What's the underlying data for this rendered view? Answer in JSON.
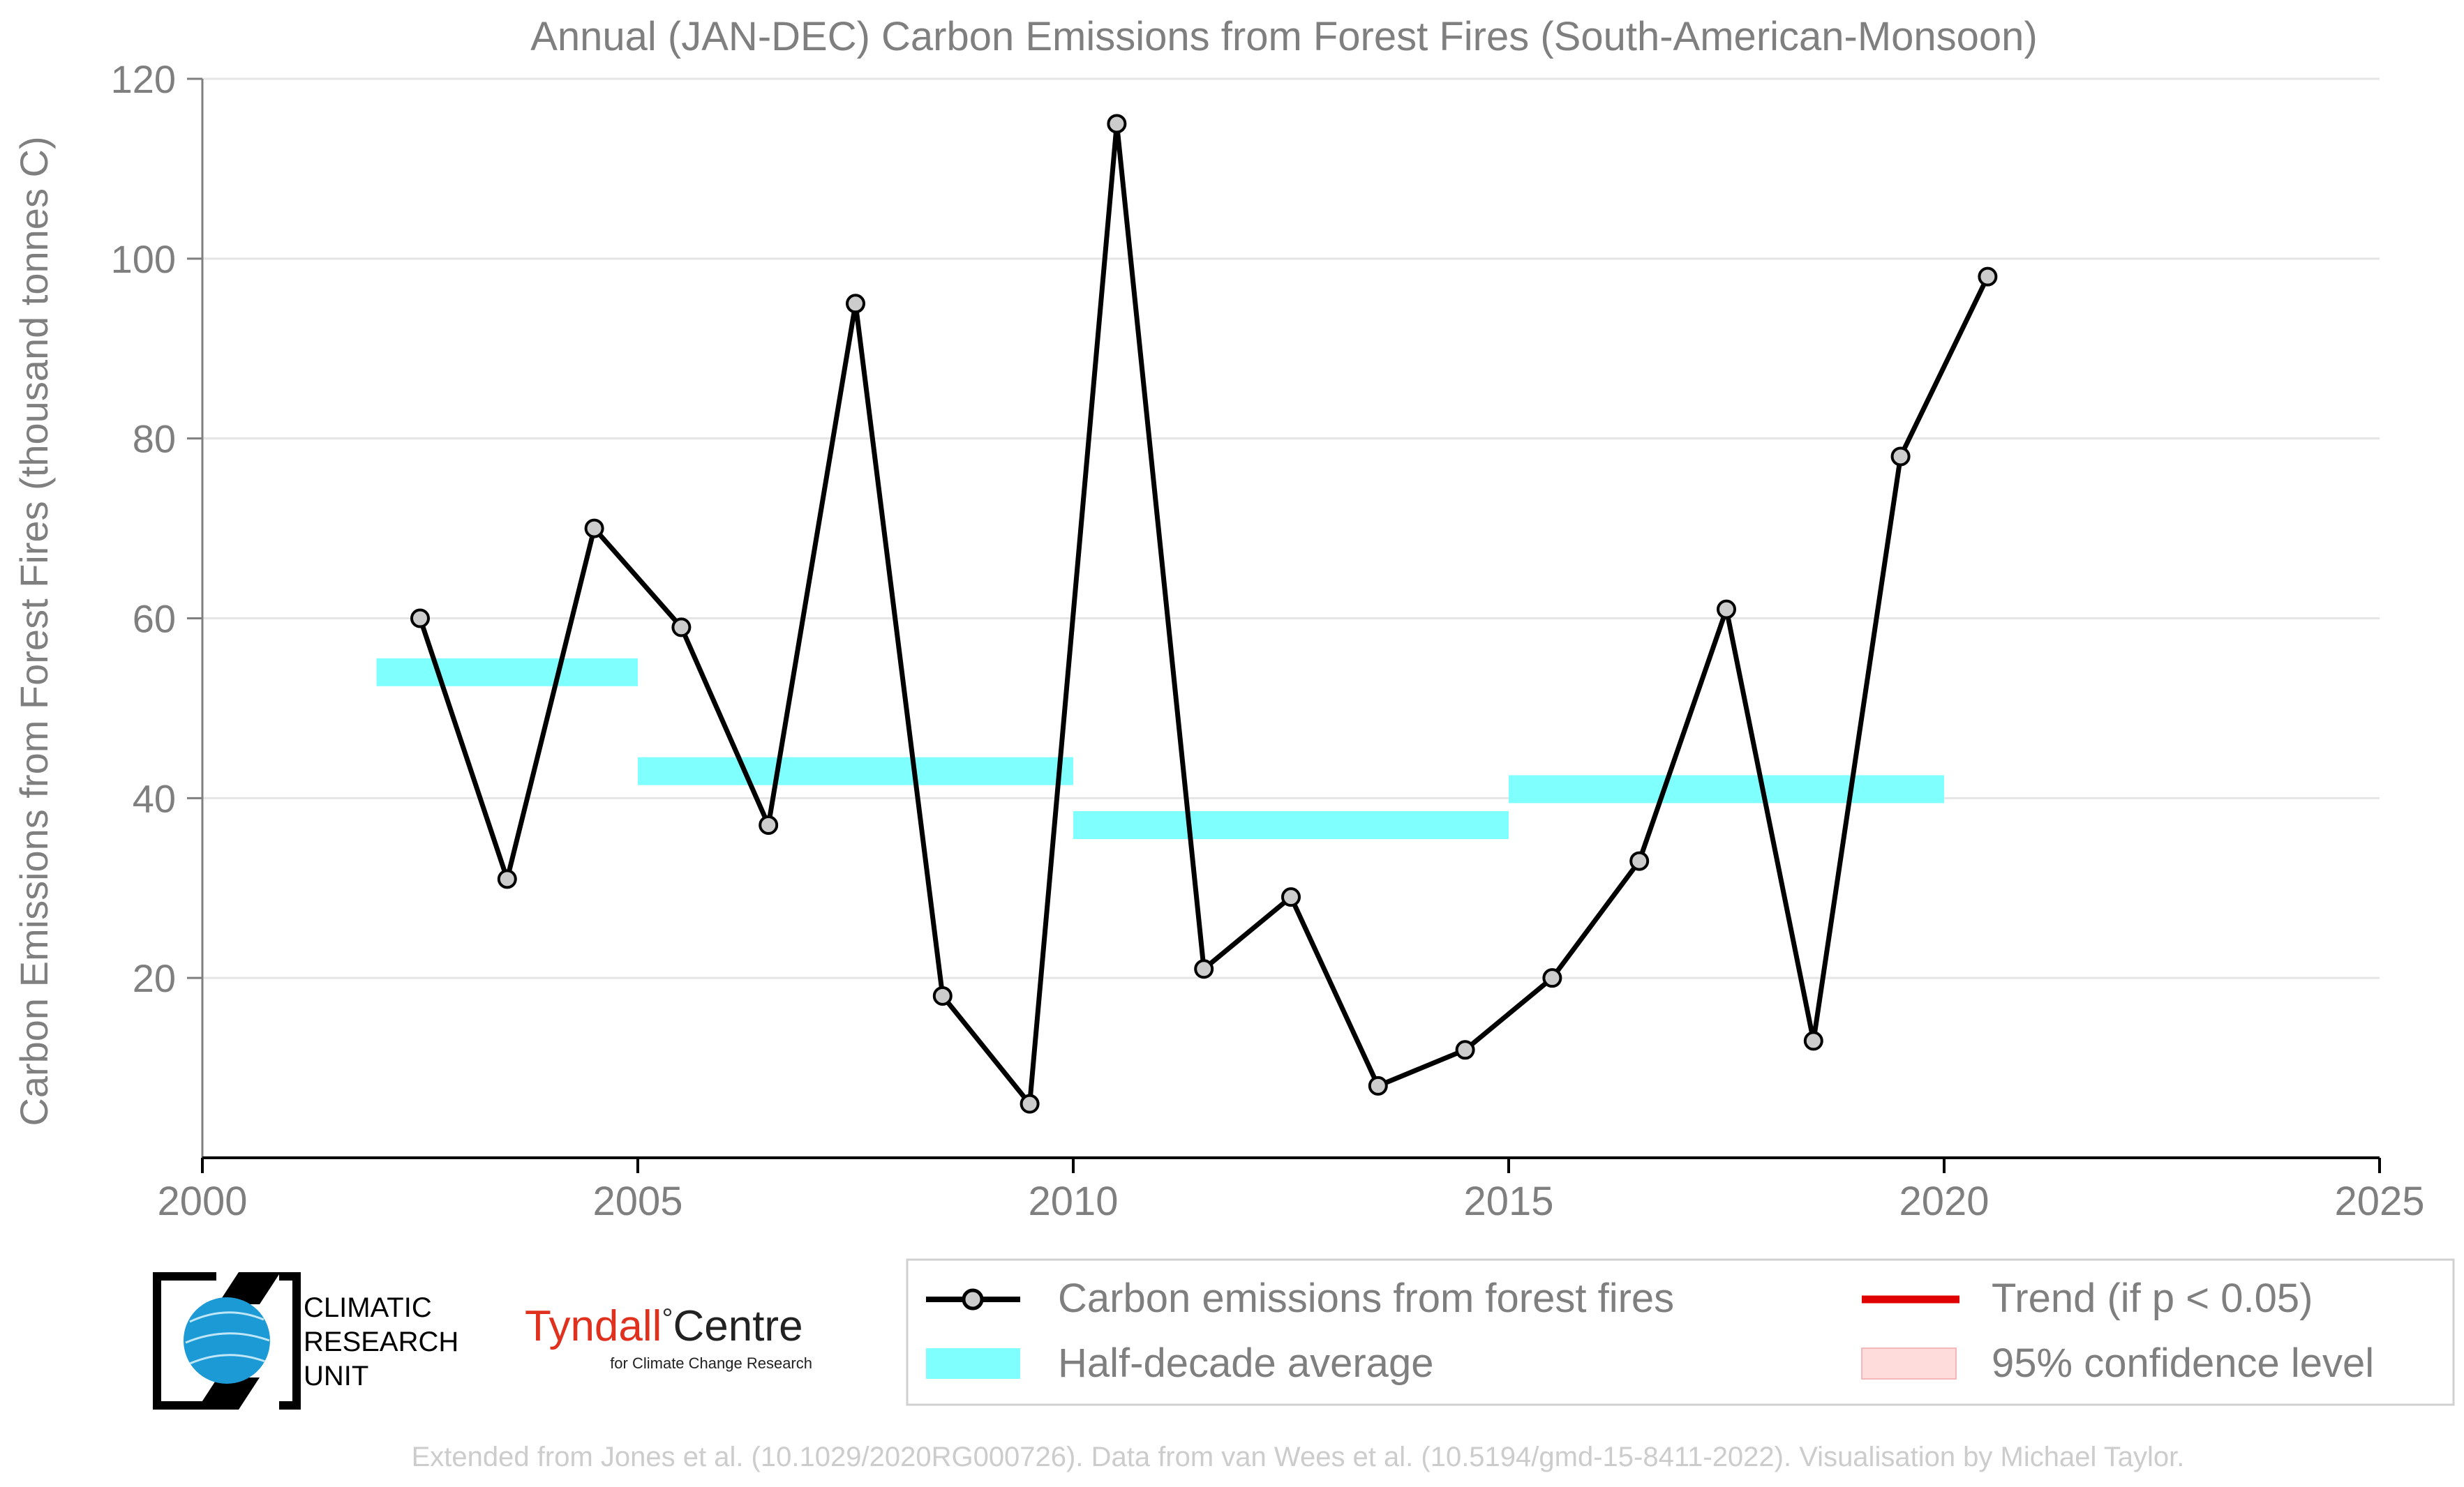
{
  "chart_data": {
    "type": "line",
    "title": "Annual (JAN-DEC) Carbon Emissions from Forest Fires (South-American-Monsoon)",
    "xlabel": "",
    "ylabel": "Carbon Emissions from Forest Fires (thousand tonnes C)",
    "xlim": [
      2000,
      2025
    ],
    "ylim": [
      0,
      120
    ],
    "x_ticks": [
      2000,
      2005,
      2010,
      2015,
      2020,
      2025
    ],
    "y_ticks": [
      20,
      40,
      60,
      80,
      100,
      120
    ],
    "grid": "horizontal",
    "series": [
      {
        "name": "Carbon emissions from forest fires",
        "color": "#000000",
        "marker_fill": "#cccccc",
        "x": [
          2002.5,
          2003.5,
          2004.5,
          2005.5,
          2006.5,
          2007.5,
          2008.5,
          2009.5,
          2010.5,
          2011.5,
          2012.5,
          2013.5,
          2014.5,
          2015.5,
          2016.5,
          2017.5,
          2018.5,
          2019.5,
          2020.5
        ],
        "values": [
          60,
          31,
          70,
          59,
          37,
          95,
          18,
          6,
          115,
          21,
          29,
          8,
          12,
          20,
          33,
          61,
          13,
          78,
          98
        ]
      }
    ],
    "half_decade_average": {
      "name": "Half-decade average",
      "color": "#80ffff",
      "segments": [
        {
          "x_start": 2002,
          "x_end": 2005,
          "value": 54
        },
        {
          "x_start": 2005,
          "x_end": 2010,
          "value": 43
        },
        {
          "x_start": 2010,
          "x_end": 2015,
          "value": 37
        },
        {
          "x_start": 2015,
          "x_end": 2020,
          "value": 41
        }
      ]
    },
    "legend": {
      "placement": "bottom-right",
      "entries": [
        {
          "label": "Carbon emissions from forest fires",
          "kind": "line-marker",
          "color": "#000000"
        },
        {
          "label": "Trend (if p < 0.05)",
          "kind": "line",
          "color": "#e00000"
        },
        {
          "label": "Half-decade average",
          "kind": "band",
          "color": "#80ffff"
        },
        {
          "label": "95% confidence level",
          "kind": "band",
          "color": "#ffdcdc"
        }
      ]
    }
  },
  "logos": {
    "cru_lines": [
      "CLIMATIC",
      "RESEARCH",
      "UNIT"
    ],
    "tyndall_red": "Tyndall",
    "tyndall_degree": "°",
    "tyndall_black": "Centre",
    "tyndall_sub": "for Climate Change Research"
  },
  "footer": "Extended from Jones et al. (10.1029/2020RG000726). Data from van Wees et al. (10.5194/gmd-15-8411-2022). Visualisation by Michael Taylor.",
  "colors": {
    "axis_text": "#7f7f7f",
    "grid": "#e5e5e5",
    "footer_text": "#cccccc",
    "tyndall_red": "#e0301e",
    "globe_blue": "#1b9ad6"
  }
}
